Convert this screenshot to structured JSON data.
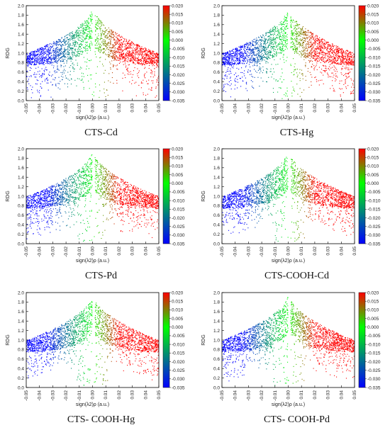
{
  "chart_data": [
    {
      "type": "scatter",
      "caption": "CTS-Cd",
      "xlabel": "sign(λ2)ρ (a.u.)",
      "ylabel": "RDG",
      "xlim": [
        -0.05,
        0.05
      ],
      "ylim": [
        0,
        2
      ],
      "xticks": [
        "-0.05",
        "-0.04",
        "-0.03",
        "-0.02",
        "-0.01",
        "0.00",
        "0.01",
        "0.02",
        "0.03",
        "0.04",
        "0.05"
      ],
      "yticks": [
        "0.0",
        "0.2",
        "0.4",
        "0.6",
        "0.8",
        "1.0",
        "1.2",
        "1.4",
        "1.6",
        "1.8",
        "2.0"
      ],
      "colorbar": {
        "min": -0.035,
        "max": 0.02,
        "ticks": [
          "0.020",
          "0.015",
          "0.010",
          "0.005",
          "0.000",
          "-0.005",
          "-0.010",
          "-0.015",
          "-0.020",
          "-0.025",
          "-0.030",
          "-0.035"
        ],
        "colors": [
          "#0000ff",
          "#00ff00",
          "#ff0000"
        ]
      },
      "sparse_tail": 0.55
    },
    {
      "type": "scatter",
      "caption": "CTS-Hg",
      "xlabel": "sign(λ2)ρ (a.u.)",
      "ylabel": "RDG",
      "xlim": [
        -0.05,
        0.05
      ],
      "ylim": [
        0,
        2
      ],
      "xticks": [
        "-0.05",
        "-0.04",
        "-0.03",
        "-0.02",
        "-0.01",
        "0.00",
        "0.01",
        "0.02",
        "0.03",
        "0.04",
        "0.05"
      ],
      "yticks": [
        "0.0",
        "0.2",
        "0.4",
        "0.6",
        "0.8",
        "1.0",
        "1.2",
        "1.4",
        "1.6",
        "1.8",
        "2.0"
      ],
      "colorbar": {
        "min": -0.035,
        "max": 0.02,
        "ticks": [
          "0.020",
          "0.015",
          "0.010",
          "0.005",
          "0.000",
          "-0.005",
          "-0.010",
          "-0.015",
          "-0.020",
          "-0.025",
          "-0.030",
          "-0.035"
        ],
        "colors": [
          "#0000ff",
          "#00ff00",
          "#ff0000"
        ]
      },
      "sparse_tail": 0.5
    },
    {
      "type": "scatter",
      "caption": "CTS-Pd",
      "xlabel": "sign(λ2)ρ (a.u.)",
      "ylabel": "RDG",
      "xlim": [
        -0.05,
        0.05
      ],
      "ylim": [
        0,
        2
      ],
      "xticks": [
        "-0.05",
        "-0.04",
        "-0.03",
        "-0.02",
        "-0.01",
        "0.00",
        "0.01",
        "0.02",
        "0.03",
        "0.04",
        "0.05"
      ],
      "yticks": [
        "0.0",
        "0.2",
        "0.4",
        "0.6",
        "0.8",
        "1.0",
        "1.2",
        "1.4",
        "1.6",
        "1.8",
        "2.0"
      ],
      "colorbar": {
        "min": -0.035,
        "max": 0.02,
        "ticks": [
          "0.020",
          "0.015",
          "0.010",
          "0.005",
          "0.000",
          "-0.005",
          "-0.010",
          "-0.015",
          "-0.020",
          "-0.025",
          "-0.030",
          "-0.035"
        ],
        "colors": [
          "#0000ff",
          "#00ff00",
          "#ff0000"
        ]
      },
      "sparse_tail": 0.45
    },
    {
      "type": "scatter",
      "caption": "CTS-COOH-Cd",
      "xlabel": "sign(λ2)ρ (a.u.)",
      "ylabel": "RDG",
      "xlim": [
        -0.05,
        0.05
      ],
      "ylim": [
        0,
        2
      ],
      "xticks": [
        "-0.05",
        "-0.04",
        "-0.03",
        "-0.02",
        "-0.01",
        "0.00",
        "0.01",
        "0.02",
        "0.03",
        "0.04",
        "0.05"
      ],
      "yticks": [
        "0.0",
        "0.2",
        "0.4",
        "0.6",
        "0.8",
        "1.0",
        "1.2",
        "1.4",
        "1.6",
        "1.8",
        "2.0"
      ],
      "colorbar": {
        "min": -0.035,
        "max": 0.02,
        "ticks": [
          "0.020",
          "0.015",
          "0.010",
          "0.005",
          "0.000",
          "-0.005",
          "-0.010",
          "-0.015",
          "-0.020",
          "-0.025",
          "-0.030",
          "-0.035"
        ],
        "colors": [
          "#0000ff",
          "#00ff00",
          "#ff0000"
        ]
      },
      "sparse_tail": 0.4
    },
    {
      "type": "scatter",
      "caption": "CTS- COOH-Hg",
      "xlabel": "sign(λ2)ρ (a.u.)",
      "ylabel": "RDG",
      "xlim": [
        -0.05,
        0.05
      ],
      "ylim": [
        0,
        2
      ],
      "xticks": [
        "-0.05",
        "-0.04",
        "-0.03",
        "-0.02",
        "-0.01",
        "0.00",
        "0.01",
        "0.02",
        "0.03",
        "0.04",
        "0.05"
      ],
      "yticks": [
        "0.0",
        "0.2",
        "0.4",
        "0.6",
        "0.8",
        "1.0",
        "1.2",
        "1.4",
        "1.6",
        "1.8",
        "2.0"
      ],
      "colorbar": {
        "min": -0.035,
        "max": 0.02,
        "ticks": [
          "0.020",
          "0.015",
          "0.010",
          "0.005",
          "0.000",
          "-0.005",
          "-0.010",
          "-0.015",
          "-0.020",
          "-0.025",
          "-0.030",
          "-0.035"
        ],
        "colors": [
          "#0000ff",
          "#00ff00",
          "#ff0000"
        ]
      },
      "sparse_tail": 0.4
    },
    {
      "type": "scatter",
      "caption": "CTS- COOH-Pd",
      "xlabel": "sign(λ2)ρ (a.u.)",
      "ylabel": "RDG",
      "xlim": [
        -0.05,
        0.05
      ],
      "ylim": [
        0,
        2
      ],
      "xticks": [
        "-0.05",
        "-0.04",
        "-0.03",
        "-0.02",
        "-0.01",
        "0.00",
        "0.01",
        "0.02",
        "0.03",
        "0.04",
        "0.05"
      ],
      "yticks": [
        "0.0",
        "0.2",
        "0.4",
        "0.6",
        "0.8",
        "1.0",
        "1.2",
        "1.4",
        "1.6",
        "1.8",
        "2.0"
      ],
      "colorbar": {
        "min": -0.035,
        "max": 0.02,
        "ticks": [
          "0.020",
          "0.015",
          "0.010",
          "0.005",
          "0.000",
          "-0.005",
          "-0.010",
          "-0.015",
          "-0.020",
          "-0.025",
          "-0.030",
          "-0.035"
        ],
        "colors": [
          "#0000ff",
          "#00ff00",
          "#ff0000"
        ]
      },
      "sparse_tail": 0.4
    }
  ]
}
